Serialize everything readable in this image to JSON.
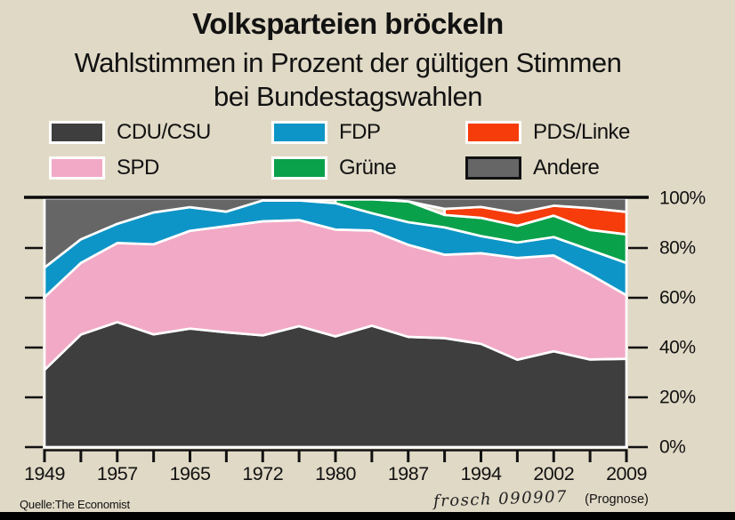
{
  "header": {
    "title": "Volksparteien bröckeln",
    "subtitle_line1": "Wahlstimmen in Prozent der gültigen Stimmen",
    "subtitle_line2": "bei Bundestagswahlen"
  },
  "legend": {
    "items": [
      {
        "label": "CDU/CSU",
        "color": "#3e3e3e",
        "border": "white"
      },
      {
        "label": "FDP",
        "color": "#0e95c7",
        "border": "white"
      },
      {
        "label": "PDS/Linke",
        "color": "#f53c0a",
        "border": "white"
      },
      {
        "label": "SPD",
        "color": "#f2a9c5",
        "border": "white"
      },
      {
        "label": "Grüne",
        "color": "#0aa14b",
        "border": "white"
      },
      {
        "label": "Andere",
        "color": "#666666",
        "border": "black"
      }
    ]
  },
  "chart_data": {
    "type": "area",
    "stacked": true,
    "title": "Volksparteien bröckeln",
    "subtitle": "Wahlstimmen in Prozent der gültigen Stimmen bei Bundestagswahlen",
    "x": [
      1949,
      1953,
      1957,
      1961,
      1965,
      1969,
      1972,
      1976,
      1980,
      1983,
      1987,
      1990,
      1994,
      1998,
      2002,
      2005,
      2009
    ],
    "x_tick_labels": [
      "1949",
      "1957",
      "1965",
      "1972",
      "1980",
      "1987",
      "1994",
      "2002",
      "2009"
    ],
    "prognose_label": "(Prognose)",
    "ylim": [
      0,
      100
    ],
    "y_ticks": [
      0,
      20,
      40,
      60,
      80,
      100
    ],
    "y_tick_labels": [
      "0%",
      "20%",
      "40%",
      "60%",
      "80%",
      "100%"
    ],
    "y_axis_labels_position": "right",
    "grid": false,
    "legend_position": "top",
    "outline_color": "#ffffff",
    "axis_color": "#111111",
    "series": [
      {
        "name": "CDU/CSU",
        "color": "#3e3e3e",
        "values": [
          31.0,
          45.2,
          50.2,
          45.3,
          47.6,
          46.1,
          44.9,
          48.6,
          44.5,
          48.8,
          44.3,
          43.8,
          41.5,
          35.1,
          38.5,
          35.2,
          35.5
        ]
      },
      {
        "name": "SPD",
        "color": "#f2a9c5",
        "values": [
          29.2,
          28.8,
          31.8,
          36.2,
          39.3,
          42.7,
          45.8,
          42.6,
          42.9,
          38.2,
          37.0,
          33.5,
          36.4,
          40.9,
          38.5,
          34.2,
          25.5
        ]
      },
      {
        "name": "FDP",
        "color": "#0e95c7",
        "values": [
          11.9,
          9.5,
          7.7,
          12.8,
          9.5,
          5.8,
          8.4,
          7.9,
          10.6,
          7.0,
          9.1,
          11.0,
          6.9,
          6.2,
          7.4,
          9.8,
          13.0
        ]
      },
      {
        "name": "Grüne",
        "color": "#0aa14b",
        "values": [
          0,
          0,
          0,
          0,
          0,
          0,
          0,
          0,
          1.5,
          5.6,
          8.3,
          5.0,
          7.3,
          6.7,
          8.6,
          8.1,
          11.5
        ]
      },
      {
        "name": "PDS/Linke",
        "color": "#f53c0a",
        "values": [
          0,
          0,
          0,
          0,
          0,
          0,
          0,
          0,
          0,
          0,
          0,
          2.4,
          4.4,
          5.1,
          4.0,
          8.7,
          9.0
        ]
      },
      {
        "name": "Andere",
        "color": "#666666",
        "values": [
          27.9,
          16.5,
          10.3,
          5.7,
          3.6,
          5.4,
          0.9,
          0.9,
          0.5,
          0.4,
          1.3,
          4.3,
          3.5,
          6.0,
          3.0,
          4.0,
          5.5
        ]
      }
    ]
  },
  "footer": {
    "source": "Quelle:The Economist",
    "signature": "frosch 090907"
  }
}
